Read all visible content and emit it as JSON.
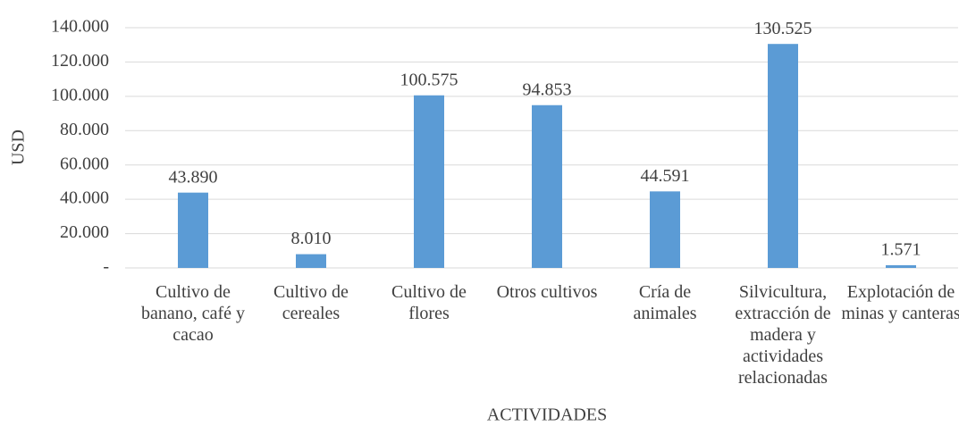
{
  "chart_data": {
    "type": "bar",
    "x_label": "ACTIVIDADES",
    "y_label": "USD",
    "categories": [
      "Cultivo de banano, café y cacao",
      "Cultivo de cereales",
      "Cultivo de flores",
      "Otros cultivos",
      "Cría de animales",
      "Silvicultura, extracción de madera y actividades relacionadas",
      "Explotación de minas y canteras"
    ],
    "values": [
      43890,
      8010,
      100575,
      94853,
      44591,
      130525,
      1571
    ],
    "value_labels": [
      "43.890",
      "8.010",
      "100.575",
      "94.853",
      "44.591",
      "130.525",
      "1.571"
    ],
    "color": "#5b9bd5",
    "ylim": [
      0,
      140000
    ],
    "yticks": [
      {
        "value": 0,
        "label": "-"
      },
      {
        "value": 20000,
        "label": "20.000"
      },
      {
        "value": 40000,
        "label": "40.000"
      },
      {
        "value": 60000,
        "label": "60.000"
      },
      {
        "value": 80000,
        "label": "80.000"
      },
      {
        "value": 100000,
        "label": "100.000"
      },
      {
        "value": 120000,
        "label": "120.000"
      },
      {
        "value": 140000,
        "label": "140.000"
      }
    ],
    "grid": true
  }
}
